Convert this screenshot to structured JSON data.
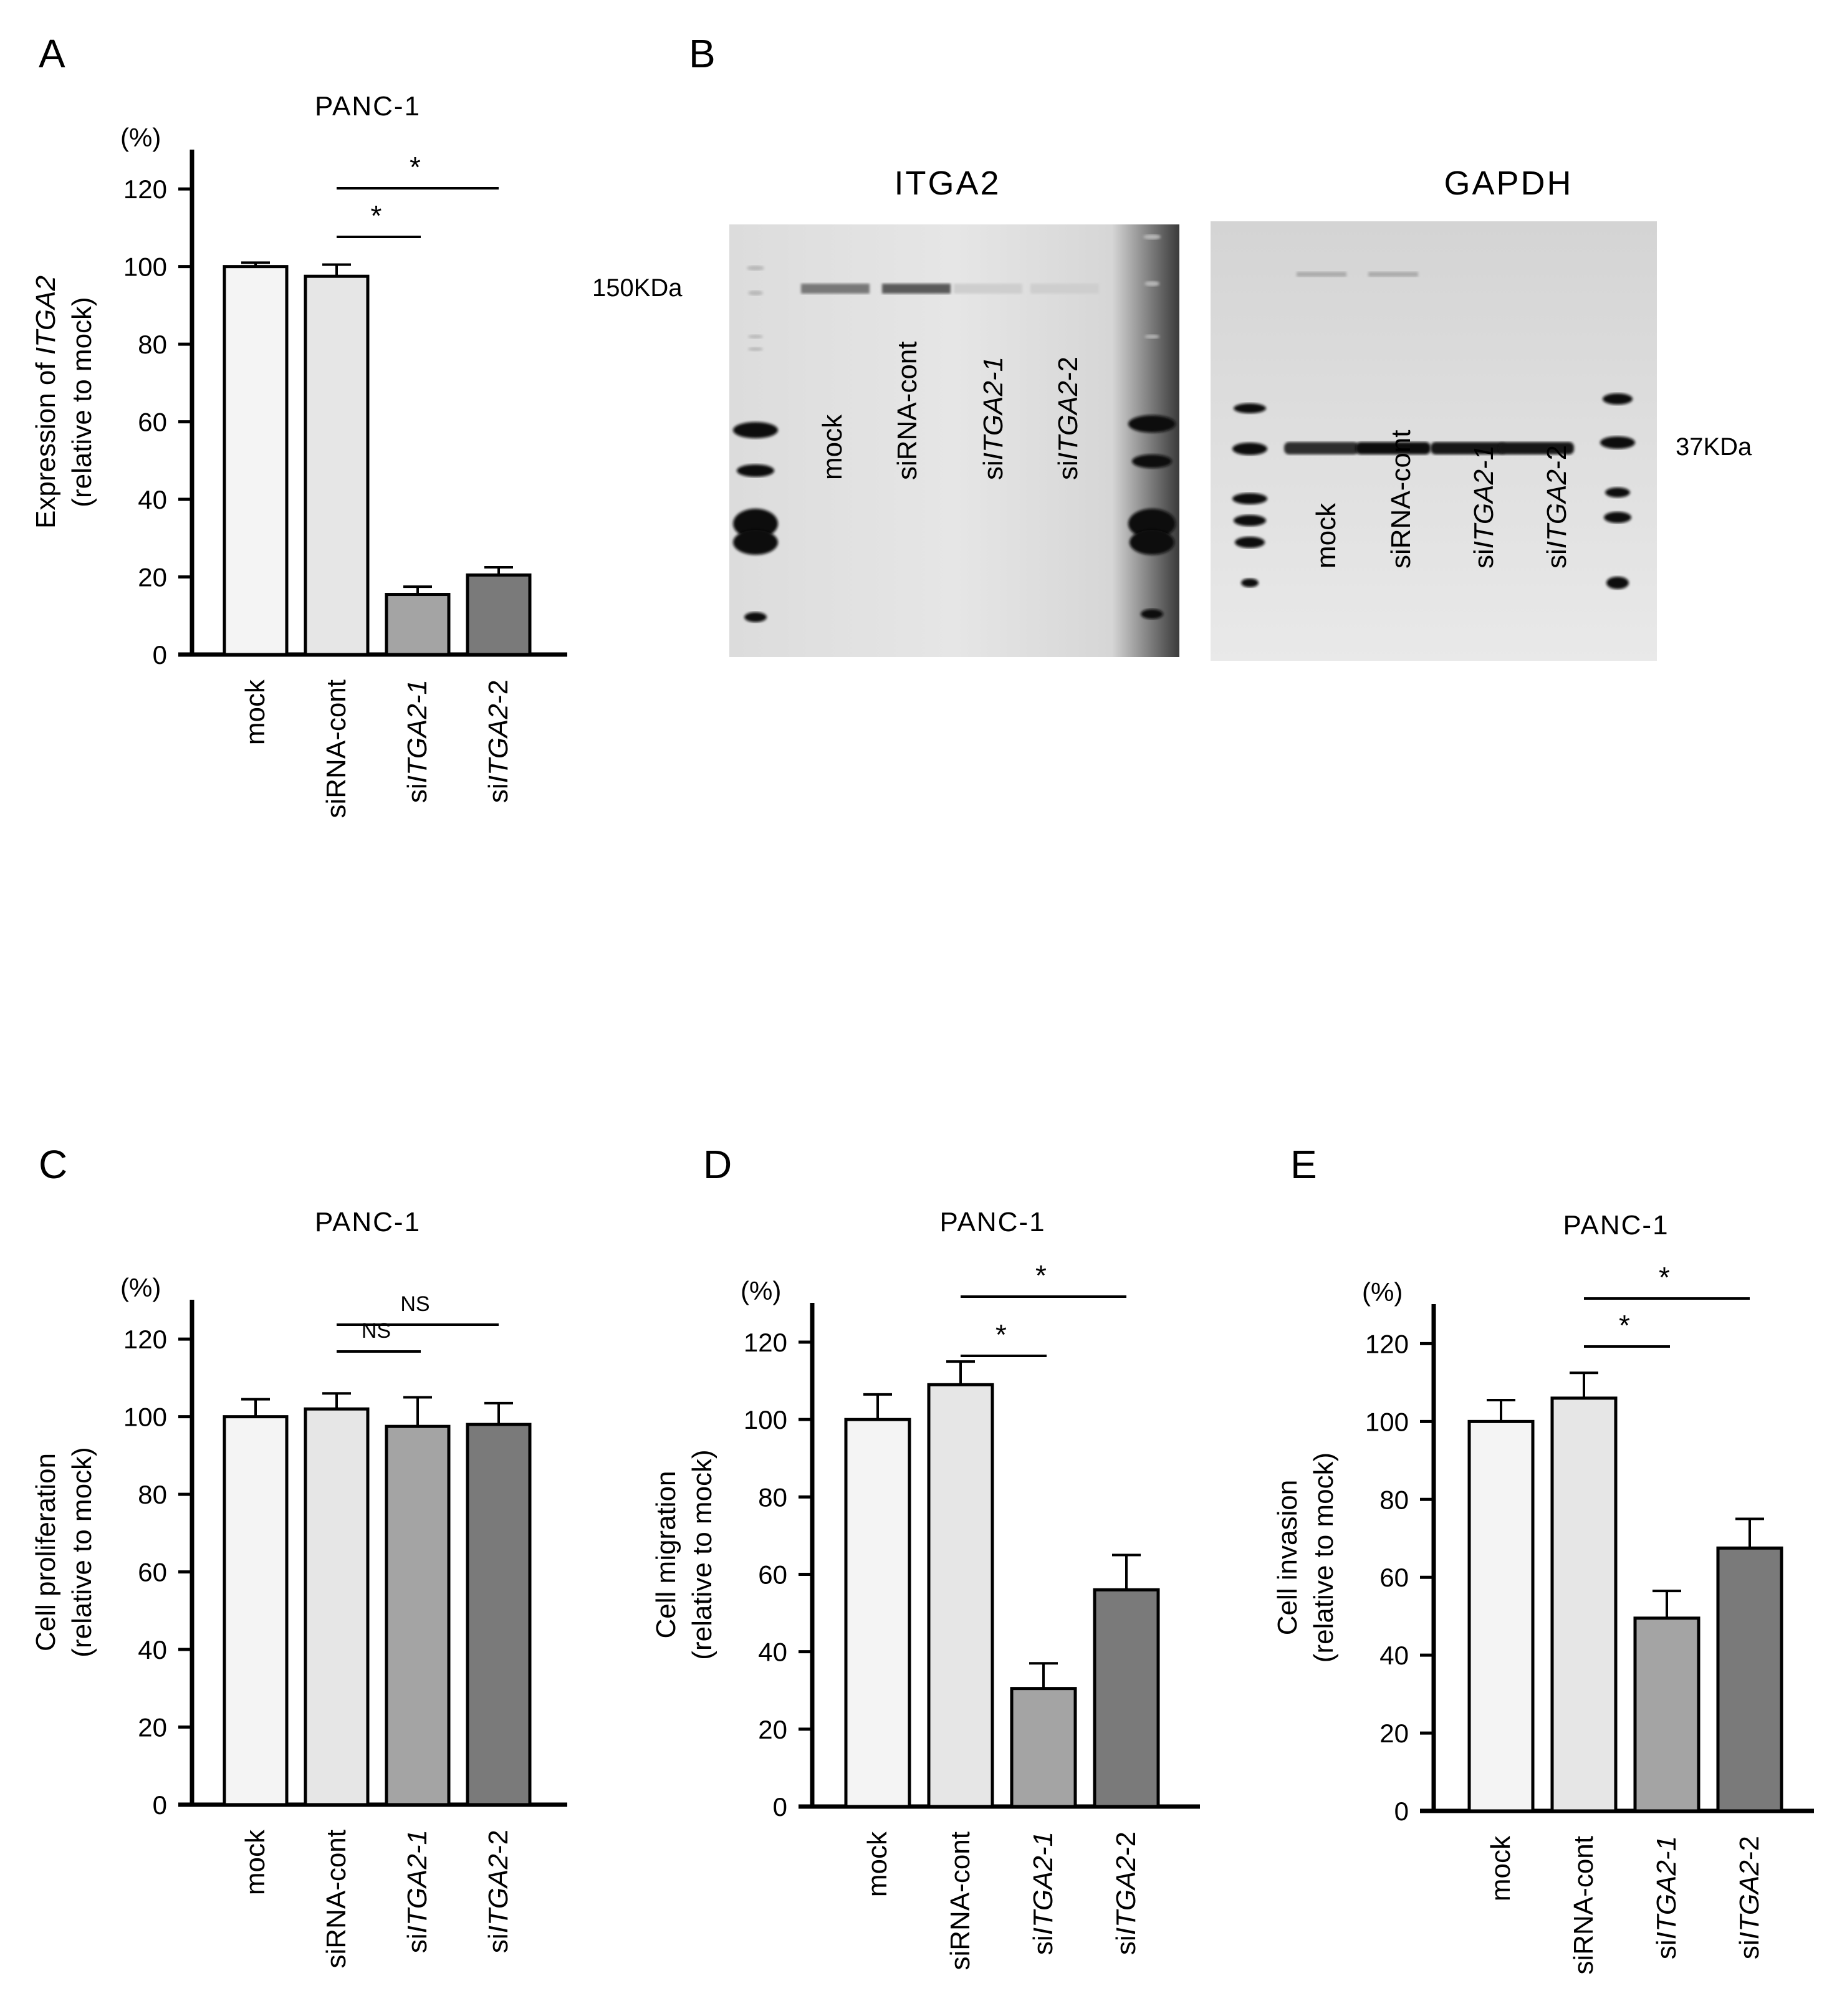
{
  "chart_data": [
    {
      "panel": "A",
      "type": "bar",
      "title": "PANC-1",
      "unit": "(%)",
      "ylabel_lines": [
        [
          {
            "t": "Expression of "
          },
          {
            "t": "ITGA2",
            "i": true
          }
        ],
        [
          {
            "t": "(relative to mock)"
          }
        ]
      ],
      "ylim": [
        0,
        120
      ],
      "yticks": [
        0,
        20,
        40,
        60,
        80,
        100,
        120
      ],
      "categories": [
        [
          {
            "t": "mock"
          }
        ],
        [
          {
            "t": "siRNA-cont"
          }
        ],
        [
          {
            "t": "si"
          },
          {
            "t": "ITGA2-1",
            "i": true
          }
        ],
        [
          {
            "t": "si"
          },
          {
            "t": "ITGA2",
            "i": true
          },
          {
            "t": "-2"
          }
        ]
      ],
      "values": [
        100,
        97.5,
        15.5,
        20.5
      ],
      "errors": [
        1.0,
        3.0,
        2.0,
        2.0
      ],
      "colors": [
        "#f4f4f4",
        "#e6e6e6",
        "#a4a4a4",
        "#7a7a7a"
      ],
      "significance": [
        {
          "from": 1,
          "to": 2,
          "label": "*"
        },
        {
          "from": 1,
          "to": 3,
          "label": "*"
        }
      ]
    },
    {
      "panel": "C",
      "type": "bar",
      "title": "PANC-1",
      "unit": "(%)",
      "ylabel_lines": [
        [
          {
            "t": "Cell proliferation"
          }
        ],
        [
          {
            "t": "(relative to mock)"
          }
        ]
      ],
      "ylim": [
        0,
        120
      ],
      "yticks": [
        0,
        20,
        40,
        60,
        80,
        100,
        120
      ],
      "categories": [
        [
          {
            "t": "mock"
          }
        ],
        [
          {
            "t": "siRNA-cont"
          }
        ],
        [
          {
            "t": "si"
          },
          {
            "t": "ITGA2-1",
            "i": true
          }
        ],
        [
          {
            "t": "si"
          },
          {
            "t": "ITGA2",
            "i": true
          },
          {
            "t": "-2"
          }
        ]
      ],
      "values": [
        100,
        102,
        97.5,
        98
      ],
      "errors": [
        4.5,
        4.0,
        7.5,
        5.5
      ],
      "colors": [
        "#f4f4f4",
        "#e6e6e6",
        "#a4a4a4",
        "#7a7a7a"
      ],
      "significance": [
        {
          "from": 1,
          "to": 2,
          "label": "NS"
        },
        {
          "from": 1,
          "to": 3,
          "label": "NS"
        }
      ]
    },
    {
      "panel": "D",
      "type": "bar",
      "title": "PANC-1",
      "unit": "(%)",
      "ylabel_lines": [
        [
          {
            "t": "Cell migration"
          }
        ],
        [
          {
            "t": "(relative to mock)"
          }
        ]
      ],
      "ylim": [
        0,
        120
      ],
      "yticks": [
        0,
        20,
        40,
        60,
        80,
        100,
        120
      ],
      "categories": [
        [
          {
            "t": "mock"
          }
        ],
        [
          {
            "t": "siRNA-cont"
          }
        ],
        [
          {
            "t": "si"
          },
          {
            "t": "ITGA2-1",
            "i": true
          }
        ],
        [
          {
            "t": "si"
          },
          {
            "t": "ITGA2",
            "i": true
          },
          {
            "t": "-2"
          }
        ]
      ],
      "values": [
        100,
        109,
        30.5,
        56
      ],
      "errors": [
        6.5,
        6.0,
        6.5,
        9.0
      ],
      "colors": [
        "#f4f4f4",
        "#e6e6e6",
        "#a4a4a4",
        "#7a7a7a"
      ],
      "significance": [
        {
          "from": 1,
          "to": 2,
          "label": "*"
        },
        {
          "from": 1,
          "to": 3,
          "label": "*"
        }
      ]
    },
    {
      "panel": "E",
      "type": "bar",
      "title": "PANC-1",
      "unit": "(%)",
      "ylabel_lines": [
        [
          {
            "t": "Cell invasion"
          }
        ],
        [
          {
            "t": "(relative to mock)"
          }
        ]
      ],
      "ylim": [
        0,
        120
      ],
      "yticks": [
        0,
        20,
        40,
        60,
        80,
        100,
        120
      ],
      "categories": [
        [
          {
            "t": "mock"
          }
        ],
        [
          {
            "t": "siRNA-cont"
          }
        ],
        [
          {
            "t": "si"
          },
          {
            "t": "ITGA2-1",
            "i": true
          }
        ],
        [
          {
            "t": "si"
          },
          {
            "t": "ITGA2",
            "i": true
          },
          {
            "t": "-2"
          }
        ]
      ],
      "values": [
        100,
        106,
        49.5,
        67.5
      ],
      "errors": [
        5.5,
        6.5,
        7.0,
        7.5
      ],
      "colors": [
        "#f4f4f4",
        "#e6e6e6",
        "#a4a4a4",
        "#7a7a7a"
      ],
      "significance": [
        {
          "from": 1,
          "to": 2,
          "label": "*"
        },
        {
          "from": 1,
          "to": 3,
          "label": "*"
        }
      ]
    }
  ],
  "blot": {
    "panel": "B",
    "markers": [
      "150KDa",
      "37KDa"
    ],
    "gels": [
      {
        "title": "ITGA2",
        "lanes": [
          [
            {
              "t": "mock"
            }
          ],
          [
            {
              "t": "siRNA-cont"
            }
          ],
          [
            {
              "t": "si"
            },
            {
              "t": "ITGA2-1",
              "i": true
            }
          ],
          [
            {
              "t": "si"
            },
            {
              "t": "ITGA2",
              "i": true
            },
            {
              "t": "-2"
            }
          ]
        ],
        "band_intensity": [
          0.55,
          0.7,
          0.12,
          0.12
        ]
      },
      {
        "title": "GAPDH",
        "lanes": [
          [
            {
              "t": "mock"
            }
          ],
          [
            {
              "t": "siRNA-cont"
            }
          ],
          [
            {
              "t": "si"
            },
            {
              "t": "ITGA2-1",
              "i": true
            }
          ],
          [
            {
              "t": "si"
            },
            {
              "t": "ITGA2",
              "i": true
            },
            {
              "t": "-2"
            }
          ]
        ],
        "band_intensity": [
          0.8,
          0.95,
          0.9,
          0.92
        ]
      }
    ]
  }
}
